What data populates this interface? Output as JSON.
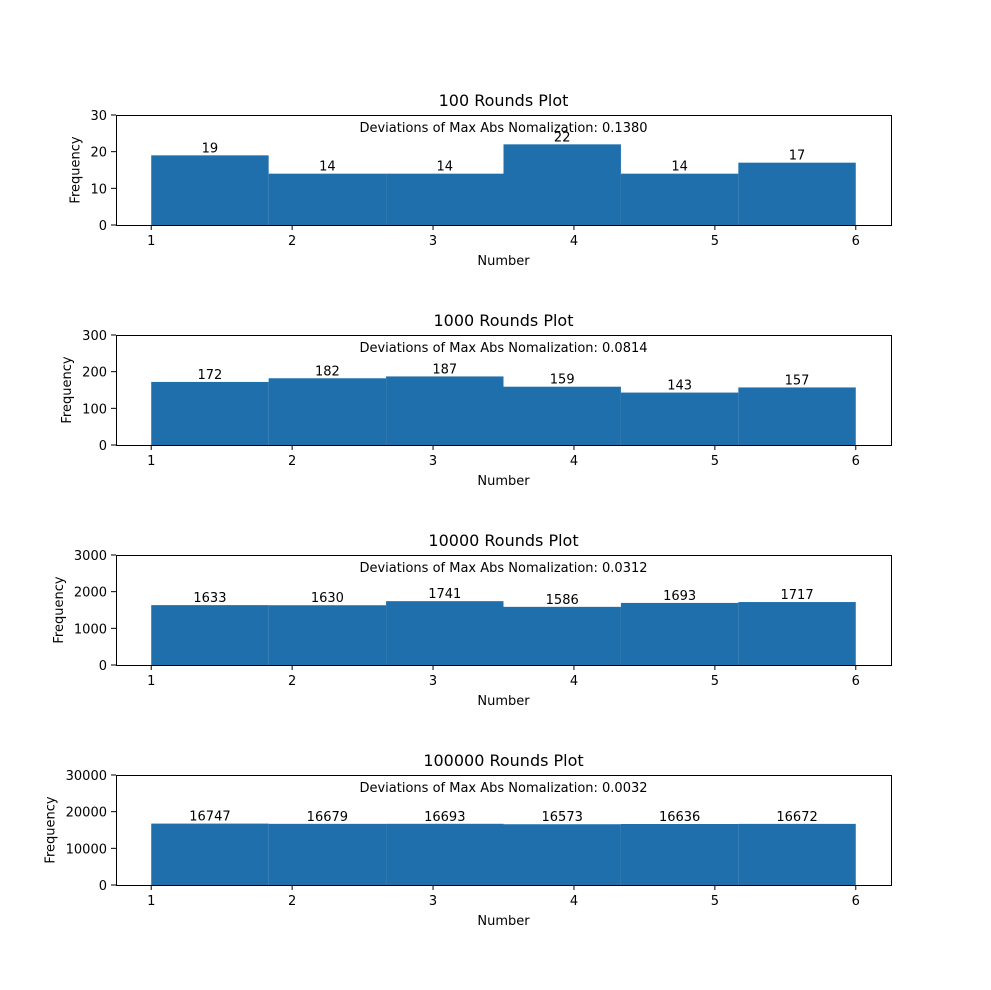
{
  "chart_data": [
    {
      "type": "bar",
      "title": "100 Rounds Plot",
      "xlabel": "Number",
      "ylabel": "Frequency",
      "annotation": "Deviations of Max Abs Nomalization: 0.1380",
      "bin_edges": [
        1,
        1.8333,
        2.6667,
        3.5,
        4.3333,
        5.1667,
        6
      ],
      "values": [
        19,
        14,
        14,
        22,
        14,
        17
      ],
      "value_labels": [
        "19",
        "14",
        "14",
        "22",
        "14",
        "17"
      ],
      "xticks": [
        1,
        2,
        3,
        4,
        5,
        6
      ],
      "xtick_labels": [
        "1",
        "2",
        "3",
        "4",
        "5",
        "6"
      ],
      "yticks": [
        0,
        10,
        20,
        30
      ],
      "ytick_labels": [
        "0",
        "10",
        "20",
        "30"
      ],
      "xlim": [
        0.75,
        6.25
      ],
      "ylim": [
        0,
        30
      ],
      "bar_color": "#1f6fad"
    },
    {
      "type": "bar",
      "title": "1000 Rounds Plot",
      "xlabel": "Number",
      "ylabel": "Frequency",
      "annotation": "Deviations of Max Abs Nomalization: 0.0814",
      "bin_edges": [
        1,
        1.8333,
        2.6667,
        3.5,
        4.3333,
        5.1667,
        6
      ],
      "values": [
        172,
        182,
        187,
        159,
        143,
        157
      ],
      "value_labels": [
        "172",
        "182",
        "187",
        "159",
        "143",
        "157"
      ],
      "xticks": [
        1,
        2,
        3,
        4,
        5,
        6
      ],
      "xtick_labels": [
        "1",
        "2",
        "3",
        "4",
        "5",
        "6"
      ],
      "yticks": [
        0,
        100,
        200,
        300
      ],
      "ytick_labels": [
        "0",
        "100",
        "200",
        "300"
      ],
      "xlim": [
        0.75,
        6.25
      ],
      "ylim": [
        0,
        300
      ],
      "bar_color": "#1f6fad"
    },
    {
      "type": "bar",
      "title": "10000 Rounds Plot",
      "xlabel": "Number",
      "ylabel": "Frequency",
      "annotation": "Deviations of Max Abs Nomalization: 0.0312",
      "bin_edges": [
        1,
        1.8333,
        2.6667,
        3.5,
        4.3333,
        5.1667,
        6
      ],
      "values": [
        1633,
        1630,
        1741,
        1586,
        1693,
        1717
      ],
      "value_labels": [
        "1633",
        "1630",
        "1741",
        "1586",
        "1693",
        "1717"
      ],
      "xticks": [
        1,
        2,
        3,
        4,
        5,
        6
      ],
      "xtick_labels": [
        "1",
        "2",
        "3",
        "4",
        "5",
        "6"
      ],
      "yticks": [
        0,
        1000,
        2000,
        3000
      ],
      "ytick_labels": [
        "0",
        "1000",
        "2000",
        "3000"
      ],
      "xlim": [
        0.75,
        6.25
      ],
      "ylim": [
        0,
        3000
      ],
      "bar_color": "#1f6fad"
    },
    {
      "type": "bar",
      "title": "100000 Rounds Plot",
      "xlabel": "Number",
      "ylabel": "Frequency",
      "annotation": "Deviations of Max Abs Nomalization: 0.0032",
      "bin_edges": [
        1,
        1.8333,
        2.6667,
        3.5,
        4.3333,
        5.1667,
        6
      ],
      "values": [
        16747,
        16679,
        16693,
        16573,
        16636,
        16672
      ],
      "value_labels": [
        "16747",
        "16679",
        "16693",
        "16573",
        "16636",
        "16672"
      ],
      "xticks": [
        1,
        2,
        3,
        4,
        5,
        6
      ],
      "xtick_labels": [
        "1",
        "2",
        "3",
        "4",
        "5",
        "6"
      ],
      "yticks": [
        0,
        10000,
        20000,
        30000
      ],
      "ytick_labels": [
        "0",
        "10000",
        "20000",
        "30000"
      ],
      "xlim": [
        0.75,
        6.25
      ],
      "ylim": [
        0,
        30000
      ],
      "bar_color": "#1f6fad"
    }
  ]
}
